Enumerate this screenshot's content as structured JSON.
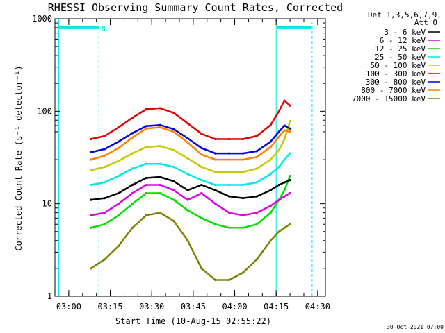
{
  "chart_data": {
    "type": "line",
    "title": "RHESSI Observing Summary Count Rates, Corrected",
    "xlabel": "Start Time (10-Aug-15 02:55:22)",
    "ylabel": "Corrected Count Rate (s⁻¹ detector⁻¹)",
    "y_scale": "log",
    "ylim": [
      1,
      1000
    ],
    "xlim_minutes_from_start": [
      -0.4,
      97.4
    ],
    "y_ticks": [
      {
        "value": 1,
        "label": "1"
      },
      {
        "value": 10,
        "label": "10"
      },
      {
        "value": 100,
        "label": "100"
      },
      {
        "value": 1000,
        "label": "1000"
      }
    ],
    "x_ticks": [
      {
        "value": 4.6,
        "label": "03:00"
      },
      {
        "value": 19.6,
        "label": "03:15"
      },
      {
        "value": 34.6,
        "label": "03:30"
      },
      {
        "value": 49.6,
        "label": "03:45"
      },
      {
        "value": 64.6,
        "label": "04:00"
      },
      {
        "value": 79.6,
        "label": "04:15"
      },
      {
        "value": 94.6,
        "label": "04:30"
      }
    ],
    "legend_header": [
      "Det 1,3,5,6,7,9,",
      "Att 0"
    ],
    "legend_position": "right",
    "x": [
      12.6,
      17.6,
      22.6,
      27.6,
      32.6,
      37.6,
      42.6,
      47.6,
      52.6,
      57.6,
      62.6,
      67.6,
      72.6,
      77.6,
      80.6,
      82.6,
      84.6
    ],
    "series": [
      {
        "name": "3 - 6 keV",
        "color": "#000000",
        "values": [
          11,
          11.5,
          13,
          16,
          19,
          19.5,
          17.5,
          14,
          16,
          14,
          12,
          11.5,
          12,
          14,
          16,
          17,
          18
        ]
      },
      {
        "name": "6 - 12 keV",
        "color": "#e000e0",
        "values": [
          7.5,
          8,
          10,
          13,
          16,
          16,
          14,
          11,
          13,
          10,
          8,
          7.5,
          8,
          9.5,
          11,
          12,
          13
        ]
      },
      {
        "name": "12 - 25 keV",
        "color": "#00e000",
        "values": [
          5.5,
          6,
          7.5,
          10,
          13,
          13,
          11,
          8.5,
          7,
          6,
          5.5,
          5.5,
          6,
          8,
          11,
          14,
          20
        ]
      },
      {
        "name": "25 - 50 keV",
        "color": "#00e8e8",
        "values": [
          16,
          17,
          20,
          24,
          27,
          27,
          25,
          21,
          18,
          16,
          16,
          16,
          17,
          21,
          25,
          30,
          35
        ]
      },
      {
        "name": "50 - 100 keV",
        "color": "#c8c800",
        "values": [
          23,
          25,
          29,
          35,
          41,
          42,
          38,
          31,
          25,
          22,
          22,
          22,
          24,
          30,
          38,
          50,
          78
        ]
      },
      {
        "name": "100 - 300 keV",
        "color": "#e00000",
        "values": [
          50,
          54,
          67,
          85,
          105,
          108,
          96,
          74,
          57,
          50,
          50,
          50,
          54,
          71,
          100,
          130,
          115
        ]
      },
      {
        "name": "300 - 800 keV",
        "color": "#0000e0",
        "values": [
          36,
          39,
          47,
          58,
          69,
          71,
          64,
          51,
          40,
          35,
          35,
          35,
          37,
          47,
          60,
          70,
          65
        ]
      },
      {
        "name": "800 - 7000 keV",
        "color": "#ff8000",
        "values": [
          30,
          33,
          40,
          52,
          65,
          67,
          60,
          46,
          34,
          30,
          30,
          30,
          32,
          41,
          53,
          62,
          60
        ]
      },
      {
        "name": "7000 - 15000 keV",
        "color": "#808000",
        "values": [
          2,
          2.5,
          3.5,
          5.5,
          7.5,
          8,
          6.5,
          4,
          2,
          1.5,
          1.5,
          1.8,
          2.5,
          4,
          5,
          5.5,
          6
        ]
      }
    ],
    "annotations": [
      {
        "label": "N",
        "color": "#00e8e8",
        "x_minutes": 15
      }
    ],
    "footer": "30-Oct-2021 07:00"
  }
}
